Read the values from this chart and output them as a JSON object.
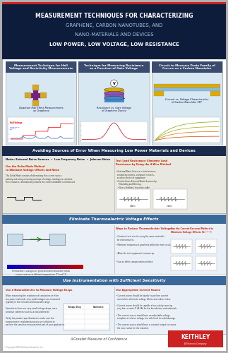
{
  "title_line1": "MEASUREMENT TECHNIQUES FOR CHARACTERIZING",
  "title_line2": "GRAPHENE, CARBON NANOTUBES, AND",
  "title_line3": "NANO-MATERIALS AND DEVICES",
  "title_line4": "LOW POWER, LOW VOLTAGE, LOW RESISTANCE",
  "header_bg": "#0d1b3e",
  "red_bar_color": "#cc0000",
  "section1_title": "Measurement Technique for Hall\nVoltage and Resistivity Measurements",
  "section2_title": "Technique for Measuring Resistance\nas a Function of Gate Voltage",
  "section3_title": "Circuit to Measure Drain Family of\nCurves on a Carbon Nanotube",
  "section4_title": "Avoiding Sources of Error When Measuring Low Power Materials and Devices",
  "section5_title": "Eliminate Thermoelectric Voltage Effects",
  "section6_title": "Use Instrumentation with Sufficient Sensitivity",
  "footer_text": "A Greater Measure of Confidence",
  "keithley_bg": "#cc0000",
  "panel_header_bg": "#3d4d6a",
  "panel_body_bg": "#dce8f0",
  "section_header_dark": "#2a3a5a",
  "section_body_light": "#e8e8e0",
  "section5_header": "#4a7aaa",
  "section6_header": "#4a7aaa"
}
